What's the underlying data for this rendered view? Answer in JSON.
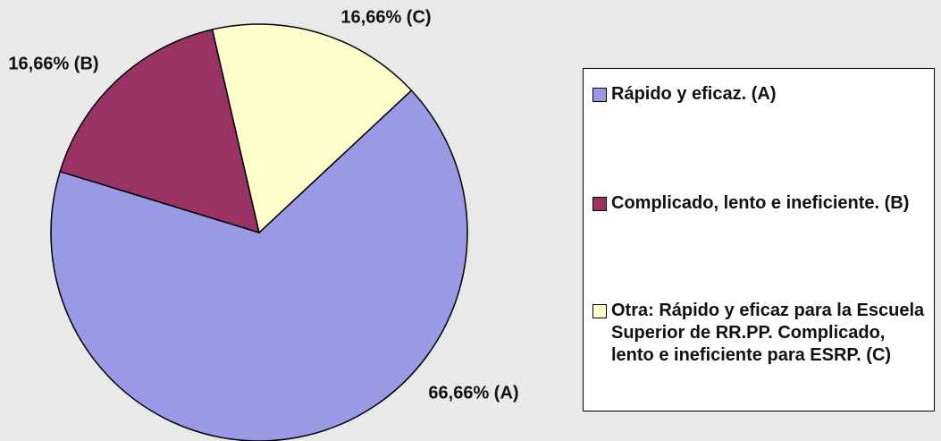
{
  "chart_data": {
    "type": "pie",
    "categories": [
      "Rápido y eficaz. (A)",
      "Complicado, lento e ineficiente. (B)",
      "Otra: Rápido y eficaz para la Escuela Superior de RR.PP. Complicado, lento e ineficiente para ESRP. (C)"
    ],
    "values": [
      66.66,
      16.66,
      16.66
    ],
    "value_labels": [
      "66,66% (A)",
      "16,66% (B)",
      "16,66% (C)"
    ],
    "colors": [
      "#9999e6",
      "#993366",
      "#ffffcc"
    ],
    "legend": "right"
  }
}
